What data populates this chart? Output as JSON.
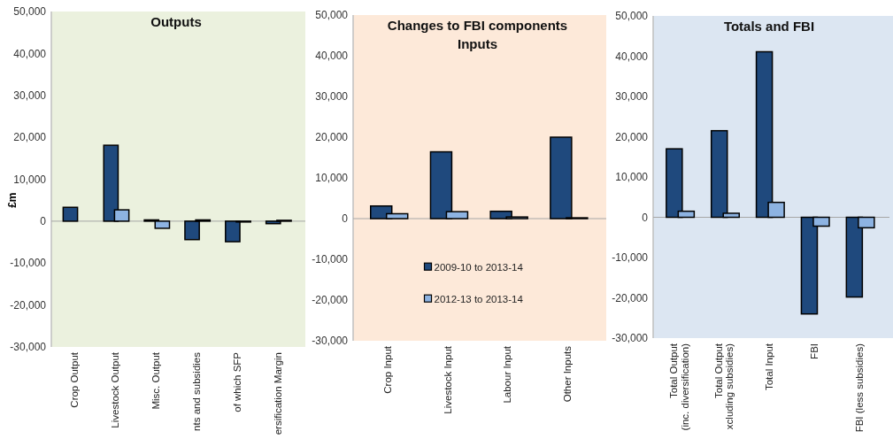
{
  "chart_data": [
    {
      "type": "bar",
      "title": "Outputs",
      "ylabel": "£m",
      "categories": [
        "Crop Output",
        "Livestock Output",
        "Misc. Output",
        "nts and subsidies",
        "of which SFP",
        "ersification Margin"
      ],
      "series": [
        {
          "color": "#1f497d",
          "values": [
            3300,
            18100,
            300,
            -4400,
            -4900,
            -600
          ]
        },
        {
          "color": "#8db3e2",
          "values": [
            0,
            2700,
            -1700,
            300,
            -200,
            200
          ]
        }
      ],
      "ylim": [
        -30000,
        50000
      ],
      "yticks": [
        {
          "value": -30000,
          "label": "-30,000"
        },
        {
          "value": -20000,
          "label": "-20,000"
        },
        {
          "value": -10000,
          "label": "-10,000"
        },
        {
          "value": 0,
          "label": "0"
        },
        {
          "value": 10000,
          "label": "10,000"
        },
        {
          "value": 20000,
          "label": "20,000"
        },
        {
          "value": 30000,
          "label": "30,000"
        },
        {
          "value": 40000,
          "label": "40,000"
        },
        {
          "value": 50000,
          "label": "50,000"
        }
      ],
      "legend": false
    },
    {
      "type": "bar",
      "title": "Changes to FBI components",
      "subtitle": "Inputs",
      "categories": [
        "Crop Input",
        "Livestock Input",
        "Labour Input",
        "Other Inputs"
      ],
      "series": [
        {
          "name": "2009-10 to 2013-14",
          "color": "#1f497d",
          "values": [
            3100,
            16400,
            1800,
            20000
          ]
        },
        {
          "name": "2012-13 to 2013-14",
          "color": "#8db3e2",
          "values": [
            1200,
            1700,
            400,
            200
          ]
        }
      ],
      "ylim": [
        -30000,
        50000
      ],
      "yticks": [
        {
          "value": -30000,
          "label": "-30,000"
        },
        {
          "value": -20000,
          "label": "-20,000"
        },
        {
          "value": -10000,
          "label": "-10,000"
        },
        {
          "value": 0,
          "label": "0"
        },
        {
          "value": 10000,
          "label": "10,000"
        },
        {
          "value": 20000,
          "label": "20,000"
        },
        {
          "value": 30000,
          "label": "30,000"
        },
        {
          "value": 40000,
          "label": "40,000"
        },
        {
          "value": 50000,
          "label": "50,000"
        }
      ],
      "legend": "bottom"
    },
    {
      "type": "bar",
      "title": "Totals and FBI",
      "categories": [
        "Total Output\n(inc. diversification)",
        "Total Output\nxcluding subsidies)",
        "Total Input",
        "FBI",
        "FBI (less subsidies)"
      ],
      "series": [
        {
          "color": "#1f497d",
          "values": [
            17000,
            21500,
            41100,
            -24000,
            -19800
          ]
        },
        {
          "color": "#8db3e2",
          "values": [
            1500,
            1000,
            3700,
            -2200,
            -2600
          ]
        }
      ],
      "ylim": [
        -30000,
        50000
      ],
      "yticks": [
        {
          "value": -30000,
          "label": "-30,000"
        },
        {
          "value": -20000,
          "label": "-20,000"
        },
        {
          "value": -10000,
          "label": "-10,000"
        },
        {
          "value": 0,
          "label": "0"
        },
        {
          "value": 10000,
          "label": "10,000"
        },
        {
          "value": 20000,
          "label": "20,000"
        },
        {
          "value": 30000,
          "label": "30,000"
        },
        {
          "value": 40000,
          "label": "40,000"
        },
        {
          "value": 50000,
          "label": "50,000"
        }
      ],
      "legend": false
    }
  ]
}
